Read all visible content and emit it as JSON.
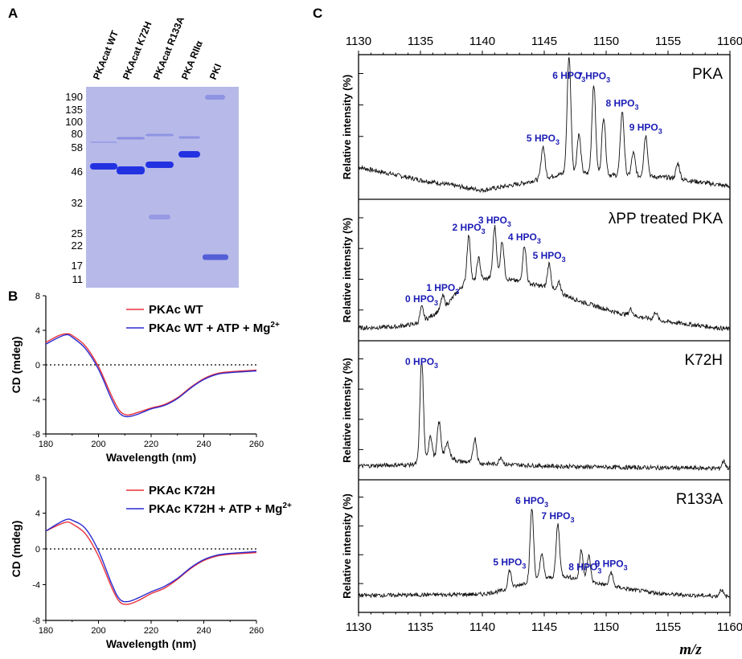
{
  "panels": {
    "a": "A",
    "b": "B",
    "c": "C"
  },
  "gel": {
    "lanes": [
      "PKAcat WT",
      "PKAcat K72H",
      "PKAcat R133A",
      "PKA RIIα",
      "PKI"
    ],
    "mw_markers": [
      "190",
      "135",
      "100",
      "80",
      "58",
      "46",
      "32",
      "25",
      "22",
      "17",
      "11"
    ]
  },
  "cd": {
    "ylabel": "CD (mdeg)",
    "xlabel": "Wavelength (nm)",
    "xticks": [
      "180",
      "200",
      "220",
      "240",
      "260"
    ],
    "yticks": [
      "8",
      "4",
      "0",
      "-4",
      "-8"
    ]
  },
  "ms": {
    "xlabel": "m/z",
    "ylabel": "Relative intensity (%)",
    "xticks": [
      "1130",
      "1135",
      "1140",
      "1145",
      "1150",
      "1155",
      "1160"
    ]
  },
  "chart_data": [
    {
      "type": "line",
      "panel": "B (top)",
      "xlabel": "Wavelength (nm)",
      "ylabel": "CD (mdeg)",
      "xlim": [
        180,
        260
      ],
      "ylim": [
        -8,
        8
      ],
      "x": [
        180,
        185,
        188,
        190,
        195,
        200,
        205,
        208,
        211,
        215,
        220,
        225,
        230,
        235,
        240,
        245,
        250,
        255,
        260
      ],
      "series": [
        {
          "name": "PKAc WT",
          "color": "#e8323c",
          "values": [
            2.6,
            3.4,
            3.6,
            3.4,
            2.2,
            -0.2,
            -3.6,
            -5.3,
            -5.8,
            -5.5,
            -5.0,
            -4.6,
            -3.8,
            -2.6,
            -1.6,
            -1.0,
            -0.8,
            -0.7,
            -0.6
          ]
        },
        {
          "name": "PKAc WT + ATP + Mg2+",
          "color": "#2b2bd0",
          "values": [
            2.4,
            3.2,
            3.5,
            3.2,
            1.9,
            -0.5,
            -4.0,
            -5.6,
            -6.0,
            -5.7,
            -5.1,
            -4.7,
            -3.9,
            -2.7,
            -1.7,
            -1.1,
            -0.9,
            -0.8,
            -0.7
          ]
        }
      ]
    },
    {
      "type": "line",
      "panel": "B (bottom)",
      "xlabel": "Wavelength (nm)",
      "ylabel": "CD (mdeg)",
      "xlim": [
        180,
        260
      ],
      "ylim": [
        -8,
        8
      ],
      "x": [
        180,
        185,
        188,
        190,
        195,
        200,
        205,
        208,
        211,
        215,
        220,
        225,
        230,
        235,
        240,
        245,
        250,
        255,
        260
      ],
      "series": [
        {
          "name": "PKAc K72H",
          "color": "#e8323c",
          "values": [
            2.0,
            2.7,
            3.0,
            2.8,
            1.7,
            -0.8,
            -4.3,
            -5.9,
            -6.2,
            -5.8,
            -5.0,
            -4.4,
            -3.4,
            -2.2,
            -1.3,
            -0.8,
            -0.6,
            -0.5,
            -0.4
          ]
        },
        {
          "name": "PKAc K72H + ATP + Mg2+",
          "color": "#2b2bd0",
          "values": [
            2.0,
            2.9,
            3.3,
            3.2,
            2.3,
            -0.2,
            -3.9,
            -5.6,
            -5.9,
            -5.5,
            -4.8,
            -4.2,
            -3.3,
            -2.1,
            -1.2,
            -0.7,
            -0.5,
            -0.4,
            -0.3
          ]
        }
      ]
    },
    {
      "type": "line",
      "panel": "C",
      "xlabel": "m/z",
      "ylabel": "Relative intensity (%)",
      "xlim": [
        1130,
        1160
      ],
      "series": [
        {
          "name": "PKA",
          "baseline": [
            [
              1130,
              0.2
            ],
            [
              1135,
              0.1
            ],
            [
              1140,
              0.02
            ],
            [
              1143,
              0.07
            ],
            [
              1147,
              0.16
            ],
            [
              1150,
              0.14
            ],
            [
              1155,
              0.12
            ],
            [
              1160,
              0.05
            ]
          ],
          "peaks": [
            [
              1144.9,
              0.25,
              0.15
            ],
            [
              1147.0,
              0.92,
              0.15
            ],
            [
              1147.8,
              0.3,
              0.15
            ],
            [
              1149.0,
              0.7,
              0.15
            ],
            [
              1149.8,
              0.45,
              0.15
            ],
            [
              1151.3,
              0.5,
              0.15
            ],
            [
              1152.2,
              0.18,
              0.15
            ],
            [
              1153.2,
              0.32,
              0.15
            ],
            [
              1155.8,
              0.12,
              0.15
            ]
          ],
          "labels": [
            {
              "text": "5 HPO3",
              "x": 1144.9
            },
            {
              "text": "6 HPO3",
              "x": 1147.0
            },
            {
              "text": "7 HPO3",
              "x": 1149.0
            },
            {
              "text": "8 HPO3",
              "x": 1151.3
            },
            {
              "text": "9 HPO3",
              "x": 1153.2
            }
          ]
        },
        {
          "name": "λPP treated PKA",
          "baseline": [
            [
              1130,
              0.05
            ],
            [
              1133,
              0.06
            ],
            [
              1135,
              0.09
            ],
            [
              1137,
              0.22
            ],
            [
              1138.5,
              0.4
            ],
            [
              1141,
              0.46
            ],
            [
              1143,
              0.42
            ],
            [
              1145,
              0.38
            ],
            [
              1148,
              0.26
            ],
            [
              1151,
              0.17
            ],
            [
              1155,
              0.1
            ],
            [
              1160,
              0.04
            ]
          ],
          "peaks": [
            [
              1135.1,
              0.12,
              0.14
            ],
            [
              1136.8,
              0.1,
              0.14
            ],
            [
              1138.9,
              0.38,
              0.14
            ],
            [
              1139.7,
              0.18,
              0.14
            ],
            [
              1141.0,
              0.4,
              0.14
            ],
            [
              1141.6,
              0.3,
              0.14
            ],
            [
              1143.4,
              0.3,
              0.14
            ],
            [
              1145.4,
              0.2,
              0.14
            ],
            [
              1146.2,
              0.08,
              0.14
            ],
            [
              1152.0,
              0.05,
              0.14
            ],
            [
              1154.0,
              0.06,
              0.14
            ]
          ],
          "labels": [
            {
              "text": "0 HPO3",
              "x": 1135.1
            },
            {
              "text": "1 HPO3",
              "x": 1136.8
            },
            {
              "text": "2 HPO3",
              "x": 1138.9
            },
            {
              "text": "3 HPO3",
              "x": 1141.0
            },
            {
              "text": "4 HPO3",
              "x": 1143.4
            },
            {
              "text": "5 HPO3",
              "x": 1145.4
            }
          ]
        },
        {
          "name": "K72H",
          "baseline": [
            [
              1130,
              0.06
            ],
            [
              1134,
              0.07
            ],
            [
              1135,
              0.08
            ],
            [
              1137,
              0.16
            ],
            [
              1138,
              0.1
            ],
            [
              1140,
              0.08
            ],
            [
              1145,
              0.06
            ],
            [
              1150,
              0.05
            ],
            [
              1160,
              0.04
            ]
          ],
          "peaks": [
            [
              1135.1,
              0.84,
              0.14
            ],
            [
              1135.8,
              0.2,
              0.14
            ],
            [
              1136.5,
              0.28,
              0.14
            ],
            [
              1137.2,
              0.1,
              0.14
            ],
            [
              1139.4,
              0.2,
              0.14
            ],
            [
              1141.5,
              0.06,
              0.14
            ],
            [
              1159.5,
              0.06,
              0.14
            ]
          ],
          "labels": [
            {
              "text": "0 HPO3",
              "x": 1135.1
            }
          ]
        },
        {
          "name": "R133A",
          "baseline": [
            [
              1130,
              0.09
            ],
            [
              1140,
              0.1
            ],
            [
              1142,
              0.14
            ],
            [
              1144,
              0.22
            ],
            [
              1146.5,
              0.26
            ],
            [
              1149,
              0.2
            ],
            [
              1152,
              0.14
            ],
            [
              1155,
              0.1
            ],
            [
              1160,
              0.08
            ]
          ],
          "peaks": [
            [
              1142.2,
              0.16,
              0.14
            ],
            [
              1144.0,
              0.62,
              0.14
            ],
            [
              1144.8,
              0.22,
              0.14
            ],
            [
              1146.1,
              0.45,
              0.14
            ],
            [
              1148.0,
              0.26,
              0.14
            ],
            [
              1148.6,
              0.22,
              0.14
            ],
            [
              1150.4,
              0.12,
              0.14
            ],
            [
              1159.3,
              0.06,
              0.14
            ]
          ],
          "labels": [
            {
              "text": "5 HPO3",
              "x": 1142.2
            },
            {
              "text": "6 HPO3",
              "x": 1144.0
            },
            {
              "text": "7 HPO3",
              "x": 1146.1
            },
            {
              "text": "8 HPO3",
              "x": 1148.3
            },
            {
              "text": "9 HPO3",
              "x": 1150.4
            }
          ]
        }
      ]
    }
  ]
}
